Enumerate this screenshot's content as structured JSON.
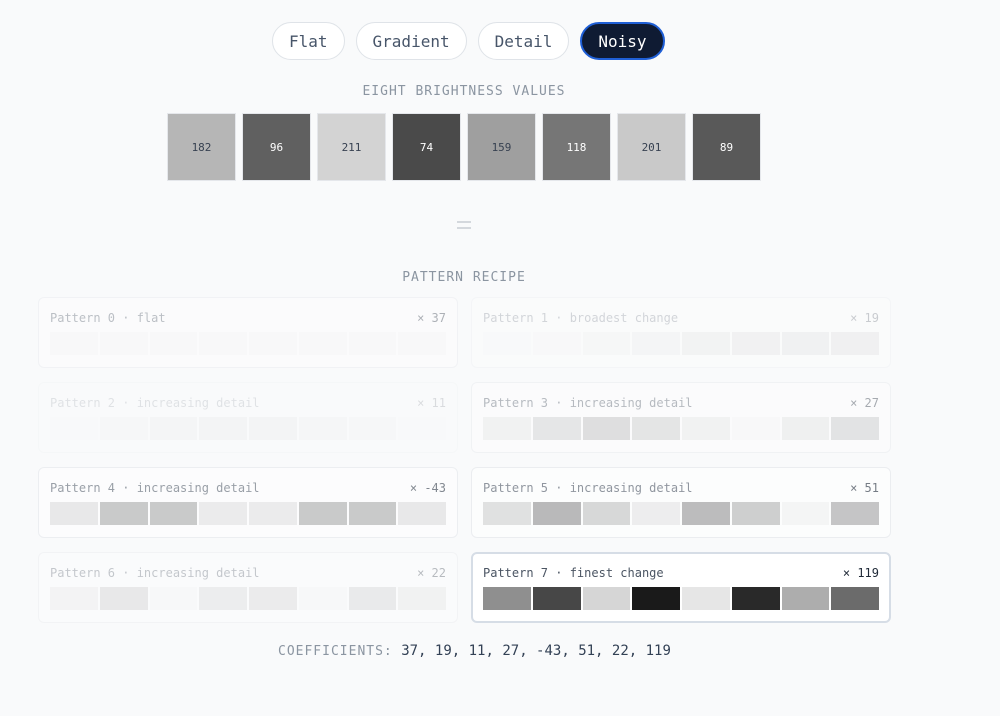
{
  "tabs": [
    {
      "label": "Flat",
      "active": false
    },
    {
      "label": "Gradient",
      "active": false
    },
    {
      "label": "Detail",
      "active": false
    },
    {
      "label": "Noisy",
      "active": true
    }
  ],
  "brightness": {
    "heading": "EIGHT BRIGHTNESS VALUES",
    "values": [
      "182",
      "96",
      "211",
      "74",
      "159",
      "118",
      "201",
      "89"
    ]
  },
  "recipe": {
    "heading": "PATTERN RECIPE",
    "patterns": [
      {
        "title": "Pattern 0 · flat",
        "multiplier": "× 37",
        "emphasis": 0.35,
        "highlight": false,
        "cells": [
          0.97,
          0.97,
          0.97,
          0.97,
          0.97,
          0.97,
          0.97,
          0.97
        ]
      },
      {
        "title": "Pattern 1 · broadest change",
        "multiplier": "× 19",
        "emphasis": 0.22,
        "highlight": false,
        "cells": [
          0.97,
          0.96,
          0.93,
          0.9,
          0.86,
          0.84,
          0.83,
          0.82
        ]
      },
      {
        "title": "Pattern 2 · increasing detail",
        "multiplier": "× 11",
        "emphasis": 0.14,
        "highlight": false,
        "cells": [
          0.96,
          0.92,
          0.86,
          0.84,
          0.84,
          0.88,
          0.92,
          0.96
        ]
      },
      {
        "title": "Pattern 3 · increasing detail",
        "multiplier": "× 27",
        "emphasis": 0.38,
        "highlight": false,
        "cells": [
          0.9,
          0.78,
          0.7,
          0.77,
          0.9,
          0.97,
          0.88,
          0.75
        ]
      },
      {
        "title": "Pattern 4 · increasing detail",
        "multiplier": "× -43",
        "emphasis": 0.55,
        "highlight": false,
        "cells": [
          0.86,
          0.64,
          0.64,
          0.88,
          0.88,
          0.64,
          0.64,
          0.86
        ]
      },
      {
        "title": "Pattern 5 · increasing detail",
        "multiplier": "× 51",
        "emphasis": 0.6,
        "highlight": false,
        "cells": [
          0.82,
          0.56,
          0.76,
          0.9,
          0.58,
          0.7,
          0.95,
          0.64
        ]
      },
      {
        "title": "Pattern 6 · increasing detail",
        "multiplier": "× 22",
        "emphasis": 0.3,
        "highlight": false,
        "cells": [
          0.9,
          0.76,
          0.96,
          0.82,
          0.8,
          0.96,
          0.78,
          0.88
        ]
      },
      {
        "title": "Pattern 7 · finest change",
        "multiplier": "× 119",
        "emphasis": 1.0,
        "highlight": true,
        "cells": [
          0.56,
          0.28,
          0.84,
          0.1,
          0.9,
          0.16,
          0.68,
          0.42
        ]
      }
    ]
  },
  "coefficients": {
    "label": "COEFFICIENTS:",
    "values": "37, 19, 11, 27, -43, 51, 22, 119"
  },
  "colors": {
    "accent": "#1f5fd6",
    "active_tab_bg": "#0f1b33"
  }
}
